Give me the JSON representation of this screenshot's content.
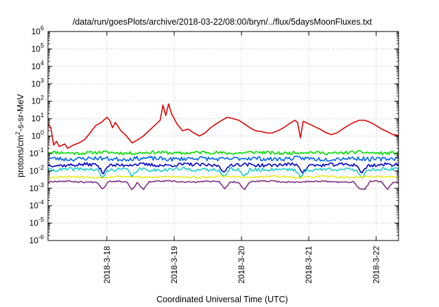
{
  "chart_data": {
    "type": "line",
    "title": "/data/run/goesPlots/archive/2018-03-22/08:00/bryn/../flux/5daysMoonFluxes.txt",
    "xlabel": "Coordinated Universal Time (UTC)",
    "ylabel": "protons/cm2-s-sr-MeV",
    "ylabel_parts": {
      "pre": "protons/cm",
      "sup": "2",
      "post": "-s-sr-MeV"
    },
    "yscale": "log",
    "ylim_exponents": [
      -6,
      6
    ],
    "y_ticks": [
      {
        "base": "10",
        "exp": "-6",
        "value": -6
      },
      {
        "base": "10",
        "exp": "-5",
        "value": -5
      },
      {
        "base": "10",
        "exp": "-4",
        "value": -4
      },
      {
        "base": "10",
        "exp": "-3",
        "value": -3
      },
      {
        "base": "10",
        "exp": "-2",
        "value": -2
      },
      {
        "base": "10",
        "exp": "-1",
        "value": -1
      },
      {
        "base": "10",
        "exp": "0",
        "value": 0
      },
      {
        "base": "10",
        "exp": "1",
        "value": 1
      },
      {
        "base": "10",
        "exp": "2",
        "value": 2
      },
      {
        "base": "10",
        "exp": "3",
        "value": 3
      },
      {
        "base": "10",
        "exp": "4",
        "value": 4
      },
      {
        "base": "10",
        "exp": "5",
        "value": 5
      },
      {
        "base": "10",
        "exp": "6",
        "value": 6
      }
    ],
    "xlim": [
      "2018-03-17T03:00",
      "2018-03-22T08:00"
    ],
    "x_ticks": [
      {
        "label": "2018-3-18",
        "value": "2018-03-18T00:00"
      },
      {
        "label": "2018-3-19",
        "value": "2018-03-19T00:00"
      },
      {
        "label": "2018-3-20",
        "value": "2018-03-20T00:00"
      },
      {
        "label": "2018-3-21",
        "value": "2018-03-21T00:00"
      },
      {
        "label": "2018-3-22",
        "value": "2018-03-22T00:00"
      }
    ],
    "grid": true,
    "series": [
      {
        "color": "#e00000",
        "width": 1.6,
        "values": [
          [
            "2018-03-17T03:00",
            5.0
          ],
          [
            "2018-03-17T04:00",
            3.0
          ],
          [
            "2018-03-17T05:00",
            0.3
          ],
          [
            "2018-03-17T06:00",
            0.5
          ],
          [
            "2018-03-17T07:00",
            0.25
          ],
          [
            "2018-03-17T09:00",
            0.35
          ],
          [
            "2018-03-17T10:00",
            0.2
          ],
          [
            "2018-03-17T12:00",
            0.3
          ],
          [
            "2018-03-17T14:00",
            0.4
          ],
          [
            "2018-03-17T16:00",
            0.6
          ],
          [
            "2018-03-17T18:00",
            1.5
          ],
          [
            "2018-03-17T20:00",
            4.0
          ],
          [
            "2018-03-17T22:00",
            6.0
          ],
          [
            "2018-03-18T00:00",
            12.0
          ],
          [
            "2018-03-18T01:00",
            8.0
          ],
          [
            "2018-03-18T02:00",
            3.0
          ],
          [
            "2018-03-18T03:00",
            6.0
          ],
          [
            "2018-03-18T05:00",
            2.0
          ],
          [
            "2018-03-18T07:00",
            1.0
          ],
          [
            "2018-03-18T09:00",
            0.4
          ],
          [
            "2018-03-18T11:00",
            0.6
          ],
          [
            "2018-03-18T13:00",
            1.0
          ],
          [
            "2018-03-18T15:00",
            2.0
          ],
          [
            "2018-03-18T17:00",
            4.0
          ],
          [
            "2018-03-18T19:00",
            8.0
          ],
          [
            "2018-03-18T20:00",
            60.0
          ],
          [
            "2018-03-18T21:00",
            15.0
          ],
          [
            "2018-03-18T22:00",
            70.0
          ],
          [
            "2018-03-18T23:00",
            20.0
          ],
          [
            "2018-03-19T00:00",
            10.0
          ],
          [
            "2018-03-19T01:00",
            5.0
          ],
          [
            "2018-03-19T03:00",
            2.0
          ],
          [
            "2018-03-19T05:00",
            2.5
          ],
          [
            "2018-03-19T07:00",
            1.5
          ],
          [
            "2018-03-19T09:00",
            1.0
          ],
          [
            "2018-03-19T11:00",
            1.5
          ],
          [
            "2018-03-19T13:00",
            3.0
          ],
          [
            "2018-03-19T15:00",
            5.0
          ],
          [
            "2018-03-19T17:00",
            8.0
          ],
          [
            "2018-03-19T19:00",
            12.0
          ],
          [
            "2018-03-19T21:00",
            10.0
          ],
          [
            "2018-03-19T23:00",
            8.0
          ],
          [
            "2018-03-20T01:00",
            5.0
          ],
          [
            "2018-03-20T03:00",
            3.0
          ],
          [
            "2018-03-20T05:00",
            2.0
          ],
          [
            "2018-03-20T07:00",
            1.8
          ],
          [
            "2018-03-20T09:00",
            1.5
          ],
          [
            "2018-03-20T11:00",
            1.5
          ],
          [
            "2018-03-20T13:00",
            2.0
          ],
          [
            "2018-03-20T15:00",
            3.0
          ],
          [
            "2018-03-20T17:00",
            5.0
          ],
          [
            "2018-03-20T19:00",
            8.0
          ],
          [
            "2018-03-20T20:00",
            6.0
          ],
          [
            "2018-03-20T21:00",
            0.8
          ],
          [
            "2018-03-20T22:00",
            7.0
          ],
          [
            "2018-03-21T00:00",
            5.0
          ],
          [
            "2018-03-21T02:00",
            3.5
          ],
          [
            "2018-03-21T04:00",
            2.5
          ],
          [
            "2018-03-21T06:00",
            1.6
          ],
          [
            "2018-03-21T08:00",
            1.2
          ],
          [
            "2018-03-21T10:00",
            1.5
          ],
          [
            "2018-03-21T12:00",
            2.5
          ],
          [
            "2018-03-21T14:00",
            4.0
          ],
          [
            "2018-03-21T16:00",
            6.0
          ],
          [
            "2018-03-21T18:00",
            8.0
          ],
          [
            "2018-03-21T20:00",
            8.0
          ],
          [
            "2018-03-21T22:00",
            6.0
          ],
          [
            "2018-03-22T00:00",
            4.0
          ],
          [
            "2018-03-22T02:00",
            2.5
          ],
          [
            "2018-03-22T04:00",
            1.8
          ],
          [
            "2018-03-22T06:00",
            1.2
          ],
          [
            "2018-03-22T08:00",
            1.1
          ]
        ]
      },
      {
        "color": "#00e000",
        "width": 1.6,
        "baseline": 0.11,
        "amp": 0.09,
        "seed": 11,
        "dips": []
      },
      {
        "color": "#0060ff",
        "width": 1.6,
        "baseline": 0.05,
        "amp": 0.12,
        "seed": 23,
        "dips": []
      },
      {
        "color": "#0000cc",
        "width": 1.6,
        "baseline": 0.022,
        "amp": 0.1,
        "seed": 37,
        "dips": [
          "2018-03-17T22:30",
          "2018-03-19T18:00",
          "2018-03-20T22:00",
          "2018-03-21T19:00"
        ]
      },
      {
        "color": "#00c8c8",
        "width": 1.4,
        "baseline": 0.012,
        "amp": 0.1,
        "seed": 41,
        "dips": [
          "2018-03-17T22:30",
          "2018-03-18T09:00",
          "2018-03-19T18:00",
          "2018-03-20T01:00",
          "2018-03-20T21:00",
          "2018-03-21T19:00"
        ]
      },
      {
        "color": "#e8e800",
        "width": 1.4,
        "baseline": 0.0045,
        "amp": 0.05,
        "seed": 53,
        "dips": []
      },
      {
        "color": "#803080",
        "width": 1.6,
        "baseline": 0.0024,
        "amp": 0.04,
        "seed": 67,
        "dips": [
          "2018-03-17T22:30",
          "2018-03-18T09:00",
          "2018-03-18T13:00",
          "2018-03-19T18:00",
          "2018-03-20T01:00",
          "2018-03-21T18:00",
          "2018-03-21T20:00",
          "2018-03-22T04:00"
        ]
      }
    ]
  }
}
